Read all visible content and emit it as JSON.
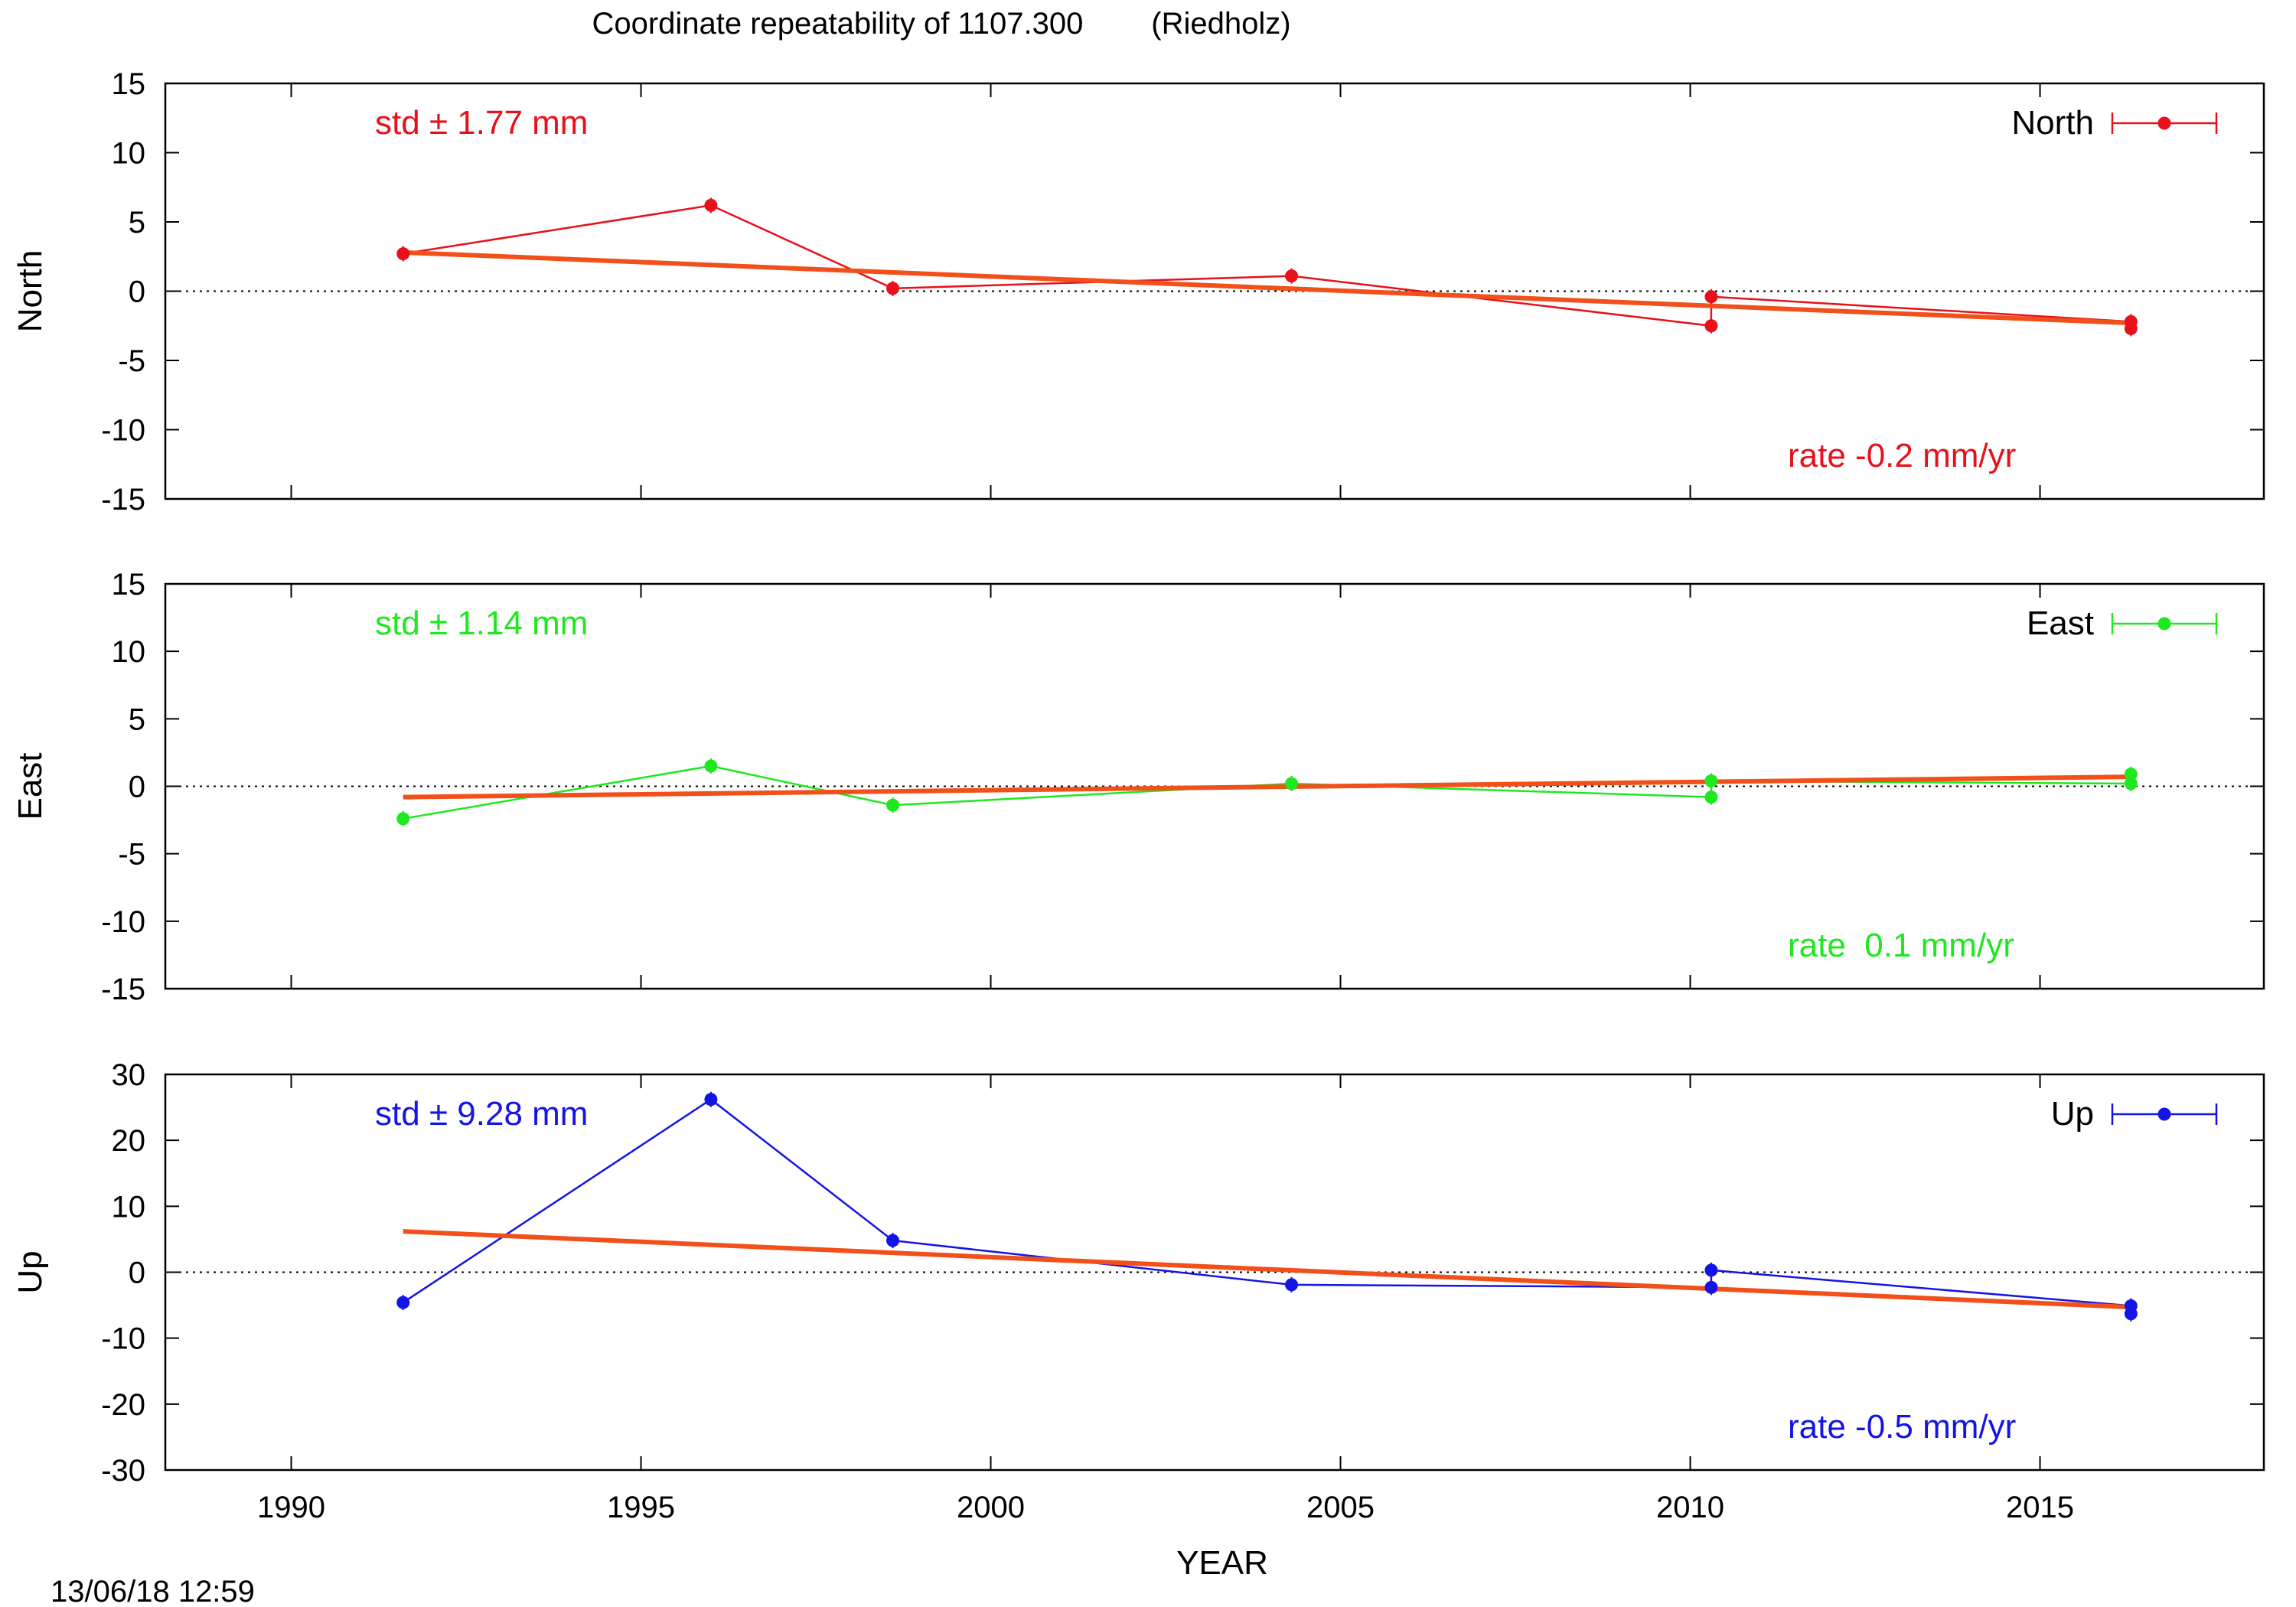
{
  "title": "Coordinate repeatability of 1107.300        (Riedholz)",
  "timestamp": "13/06/18 12:59",
  "chart_data": [
    {
      "type": "line",
      "id": "north",
      "ylabel": "North",
      "xlabel": "",
      "xlim": [
        1988.2,
        2018.2
      ],
      "ylim": [
        -15,
        15
      ],
      "yticks": [
        -15,
        -10,
        -5,
        0,
        5,
        10,
        15
      ],
      "xticks": [
        1990,
        1995,
        2000,
        2005,
        2010,
        2015
      ],
      "x_tick_labels_visible": false,
      "zero_line": true,
      "legend": {
        "label": "North",
        "placement": "top-right"
      },
      "std_label": "std ± 1.77 mm",
      "rate_label": "rate -0.2 mm/yr",
      "color": "#e8101a",
      "trend_color": "#f2501a",
      "series": [
        {
          "name": "North",
          "x": [
            1991.6,
            1996.0,
            1998.6,
            2004.3,
            2010.3,
            2010.3,
            2016.3,
            2016.3
          ],
          "y": [
            2.7,
            6.2,
            0.2,
            1.1,
            -2.5,
            -0.4,
            -2.2,
            -2.7
          ]
        }
      ],
      "trend": {
        "x": [
          1991.6,
          2016.3
        ],
        "y": [
          2.8,
          -2.3
        ]
      }
    },
    {
      "type": "line",
      "id": "east",
      "ylabel": "East",
      "xlabel": "",
      "xlim": [
        1988.2,
        2018.2
      ],
      "ylim": [
        -15,
        15
      ],
      "yticks": [
        -15,
        -10,
        -5,
        0,
        5,
        10,
        15
      ],
      "xticks": [
        1990,
        1995,
        2000,
        2005,
        2010,
        2015
      ],
      "x_tick_labels_visible": false,
      "zero_line": true,
      "legend": {
        "label": "East",
        "placement": "top-right"
      },
      "std_label": "std ± 1.14 mm",
      "rate_label": "rate  0.1 mm/yr",
      "color": "#1ee81e",
      "trend_color": "#f2501a",
      "series": [
        {
          "name": "East",
          "x": [
            1991.6,
            1996.0,
            1998.6,
            2004.3,
            2010.3,
            2010.3,
            2016.3,
            2016.3
          ],
          "y": [
            -2.4,
            1.5,
            -1.4,
            0.2,
            -0.8,
            0.4,
            0.2,
            0.9
          ]
        }
      ],
      "trend": {
        "x": [
          1991.6,
          2016.3
        ],
        "y": [
          -0.8,
          0.7
        ]
      }
    },
    {
      "type": "line",
      "id": "up",
      "ylabel": "Up",
      "xlabel": "YEAR",
      "xlim": [
        1988.2,
        2018.2
      ],
      "ylim": [
        -30,
        30
      ],
      "yticks": [
        -30,
        -20,
        -10,
        0,
        10,
        20,
        30
      ],
      "xticks": [
        1990,
        1995,
        2000,
        2005,
        2010,
        2015
      ],
      "x_tick_labels_visible": true,
      "zero_line": true,
      "legend": {
        "label": "Up",
        "placement": "top-right"
      },
      "std_label": "std ± 9.28 mm",
      "rate_label": "rate -0.5 mm/yr",
      "color": "#1414e6",
      "trend_color": "#f2501a",
      "series": [
        {
          "name": "Up",
          "x": [
            1991.6,
            1996.0,
            1998.6,
            2004.3,
            2010.3,
            2010.3,
            2016.3,
            2016.3
          ],
          "y": [
            -4.6,
            26.2,
            4.8,
            -1.9,
            -2.3,
            0.3,
            -5.1,
            -6.3
          ]
        }
      ],
      "trend": {
        "x": [
          1991.6,
          2016.3
        ],
        "y": [
          6.2,
          -5.3
        ]
      }
    }
  ]
}
